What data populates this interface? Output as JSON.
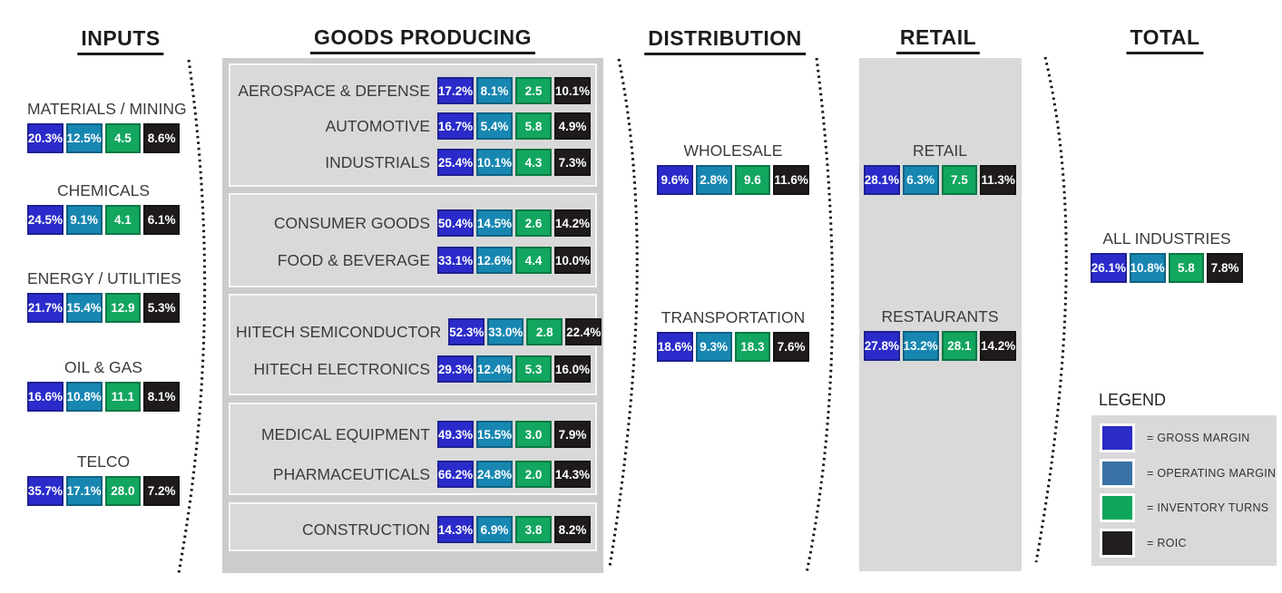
{
  "headers": {
    "inputs": "INPUTS",
    "goods": "GOODS PRODUCING",
    "distribution": "DISTRIBUTION",
    "retail": "RETAIL",
    "total": "TOTAL"
  },
  "metric_order": [
    "gross_margin",
    "operating_margin",
    "inventory_turns",
    "roic"
  ],
  "colors": {
    "gross_margin": "#2B2BCB",
    "operating_margin": "#1787B2",
    "inventory_turns": "#12A65F",
    "roic": "#1F1B1B"
  },
  "inputs": {
    "items": [
      {
        "label": "MATERIALS / MINING",
        "values": [
          "20.3%",
          "12.5%",
          "4.5",
          "8.6%"
        ]
      },
      {
        "label": "CHEMICALS",
        "values": [
          "24.5%",
          "9.1%",
          "4.1",
          "6.1%"
        ]
      },
      {
        "label": "ENERGY / UTILITIES",
        "values": [
          "21.7%",
          "15.4%",
          "12.9",
          "5.3%"
        ]
      },
      {
        "label": "OIL & GAS",
        "values": [
          "16.6%",
          "10.8%",
          "11.1",
          "8.1%"
        ]
      },
      {
        "label": "TELCO",
        "values": [
          "35.7%",
          "17.1%",
          "28.0",
          "7.2%"
        ]
      }
    ]
  },
  "goods": {
    "groups": [
      {
        "rows": [
          {
            "label": "AEROSPACE & DEFENSE",
            "values": [
              "17.2%",
              "8.1%",
              "2.5",
              "10.1%"
            ]
          },
          {
            "label": "AUTOMOTIVE",
            "values": [
              "16.7%",
              "5.4%",
              "5.8",
              "4.9%"
            ]
          },
          {
            "label": "INDUSTRIALS",
            "values": [
              "25.4%",
              "10.1%",
              "4.3",
              "7.3%"
            ]
          }
        ]
      },
      {
        "rows": [
          {
            "label": "CONSUMER GOODS",
            "values": [
              "50.4%",
              "14.5%",
              "2.6",
              "14.2%"
            ]
          },
          {
            "label": "FOOD & BEVERAGE",
            "values": [
              "33.1%",
              "12.6%",
              "4.4",
              "10.0%"
            ]
          }
        ]
      },
      {
        "rows": [
          {
            "label": "HITECH SEMICONDUCTOR",
            "values": [
              "52.3%",
              "33.0%",
              "2.8",
              "22.4%"
            ]
          },
          {
            "label": "HITECH ELECTRONICS",
            "values": [
              "29.3%",
              "12.4%",
              "5.3",
              "16.0%"
            ]
          }
        ]
      },
      {
        "rows": [
          {
            "label": "MEDICAL EQUIPMENT",
            "values": [
              "49.3%",
              "15.5%",
              "3.0",
              "7.9%"
            ]
          },
          {
            "label": "PHARMACEUTICALS",
            "values": [
              "66.2%",
              "24.8%",
              "2.0",
              "14.3%"
            ]
          }
        ]
      },
      {
        "rows": [
          {
            "label": "CONSTRUCTION",
            "values": [
              "14.3%",
              "6.9%",
              "3.8",
              "8.2%"
            ]
          }
        ]
      }
    ]
  },
  "distribution": {
    "items": [
      {
        "label": "WHOLESALE",
        "values": [
          "9.6%",
          "2.8%",
          "9.6",
          "11.6%"
        ]
      },
      {
        "label": "TRANSPORTATION",
        "values": [
          "18.6%",
          "9.3%",
          "18.3",
          "7.6%"
        ]
      }
    ]
  },
  "retail": {
    "items": [
      {
        "label": "RETAIL",
        "values": [
          "28.1%",
          "6.3%",
          "7.5",
          "11.3%"
        ]
      },
      {
        "label": "RESTAURANTS",
        "values": [
          "27.8%",
          "13.2%",
          "28.1",
          "14.2%"
        ]
      }
    ]
  },
  "total": {
    "items": [
      {
        "label": "ALL INDUSTRIES",
        "values": [
          "26.1%",
          "10.8%",
          "5.8",
          "7.8%"
        ]
      }
    ]
  },
  "legend": {
    "title": "LEGEND",
    "items": [
      {
        "key": "gross_margin",
        "swatch": "#2B2BC8",
        "label": "= GROSS MARGIN"
      },
      {
        "key": "operating_margin",
        "swatch": "#3A71A6",
        "label": "= OPERATING MARGIN"
      },
      {
        "key": "inventory_turns",
        "swatch": "#0FA65C",
        "label": "= INVENTORY TURNS"
      },
      {
        "key": "roic",
        "swatch": "#231E1E",
        "label": "= ROIC"
      }
    ]
  }
}
